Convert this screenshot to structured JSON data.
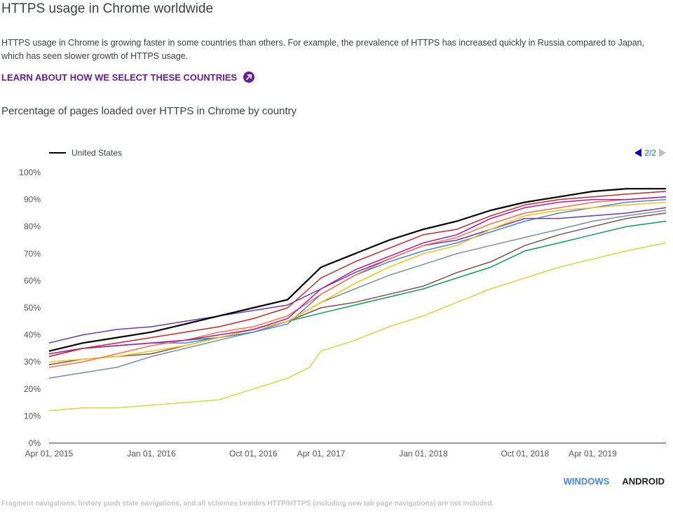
{
  "header": {
    "title": "HTTPS usage in Chrome worldwide",
    "description": "HTTPS usage in Chrome is growing faster in some countries than others. For example, the prevalence of HTTPS has increased quickly in Russia compared to Japan, which has seen slower growth of HTTPS usage.",
    "link_label": "LEARN ABOUT HOW WE SELECT THESE COUNTRIES",
    "link_icon": "arrow-outward-circle-icon"
  },
  "chart_title": "Percentage of pages loaded over HTTPS in Chrome by country",
  "legend": {
    "label": "United States",
    "color": "#000000"
  },
  "pager": {
    "label": "2/2",
    "prev_icon": "triangle-left-icon",
    "next_icon": "triangle-right-icon"
  },
  "tabs": {
    "windows": "WINDOWS",
    "android": "ANDROID",
    "active": "android"
  },
  "footnote": "Fragment navigations, history push state navigations, and all schemes besides HTTP/HTTPS (including new tab page navigations) are not included.",
  "chart_data": {
    "type": "line",
    "title": "Percentage of pages loaded over HTTPS in Chrome by country",
    "xlabel": "",
    "ylabel": "",
    "x_range": [
      "2015-04-01",
      "2019-10-15"
    ],
    "ylim": [
      0,
      100
    ],
    "y_ticks": [
      "0%",
      "10%",
      "20%",
      "30%",
      "40%",
      "50%",
      "60%",
      "70%",
      "80%",
      "90%",
      "100%"
    ],
    "x_ticks": [
      {
        "date": "2015-04-01",
        "label": "Apr 01, 2015"
      },
      {
        "date": "2016-01-01",
        "label": "Jan 01, 2016"
      },
      {
        "date": "2016-10-01",
        "label": "Oct 01, 2016"
      },
      {
        "date": "2017-04-01",
        "label": "Apr 01, 2017"
      },
      {
        "date": "2018-01-01",
        "label": "Jan 01, 2018"
      },
      {
        "date": "2018-10-01",
        "label": "Oct 01, 2018"
      },
      {
        "date": "2019-04-01",
        "label": "Apr 01, 2019"
      }
    ],
    "grid": false,
    "legend_position": "top-left",
    "series": [
      {
        "color": "#cddc39",
        "x": [
          "2015-04-01",
          "2015-07-01",
          "2015-10-01",
          "2016-01-01",
          "2016-04-01",
          "2016-07-01",
          "2016-10-01",
          "2017-01-01",
          "2017-03-01",
          "2017-04-01",
          "2017-07-01",
          "2017-10-01",
          "2018-01-01",
          "2018-04-01",
          "2018-07-01",
          "2018-10-01",
          "2019-01-01",
          "2019-04-01",
          "2019-07-01",
          "2019-10-15"
        ],
        "values": [
          12,
          13,
          13,
          14,
          15,
          16,
          20,
          24,
          28,
          34,
          38,
          43,
          47,
          52,
          57,
          61,
          65,
          68,
          71,
          74
        ]
      },
      {
        "color": "#0f9d58",
        "x": [
          "2015-04-01",
          "2015-07-01",
          "2015-10-01",
          "2016-01-01",
          "2016-04-01",
          "2016-07-01",
          "2016-10-01",
          "2017-01-01",
          "2017-04-01",
          "2017-07-01",
          "2017-10-01",
          "2018-01-01",
          "2018-04-01",
          "2018-07-01",
          "2018-10-01",
          "2019-01-01",
          "2019-04-01",
          "2019-07-01",
          "2019-10-15"
        ],
        "values": [
          32,
          35,
          36,
          37,
          38,
          39,
          41,
          45,
          48,
          51,
          54,
          57,
          61,
          65,
          71,
          74,
          77,
          80,
          82
        ]
      },
      {
        "color": "#795548",
        "x": [
          "2015-04-01",
          "2015-07-01",
          "2015-10-01",
          "2016-01-01",
          "2016-04-01",
          "2016-07-01",
          "2016-10-01",
          "2017-01-01",
          "2017-04-01",
          "2017-07-01",
          "2017-10-01",
          "2018-01-01",
          "2018-04-01",
          "2018-07-01",
          "2018-10-01",
          "2019-01-01",
          "2019-04-01",
          "2019-07-01",
          "2019-10-15"
        ],
        "values": [
          29,
          31,
          32,
          33,
          36,
          39,
          42,
          45,
          50,
          52,
          55,
          58,
          63,
          67,
          73,
          77,
          80,
          83,
          85
        ]
      },
      {
        "color": "#78909c",
        "x": [
          "2015-04-01",
          "2015-07-01",
          "2015-10-01",
          "2016-01-01",
          "2016-04-01",
          "2016-07-01",
          "2016-10-01",
          "2017-01-01",
          "2017-04-01",
          "2017-07-01",
          "2017-10-01",
          "2018-01-01",
          "2018-04-01",
          "2018-07-01",
          "2018-10-01",
          "2019-01-01",
          "2019-04-01",
          "2019-07-01",
          "2019-10-15"
        ],
        "values": [
          24,
          26,
          28,
          32,
          35,
          38,
          41,
          45,
          52,
          57,
          62,
          66,
          70,
          73,
          76,
          79,
          82,
          84,
          86
        ]
      },
      {
        "color": "#4285f4",
        "x": [
          "2015-04-01",
          "2015-07-01",
          "2015-10-01",
          "2016-01-01",
          "2016-04-01",
          "2016-07-01",
          "2016-10-01",
          "2017-01-01",
          "2017-04-01",
          "2017-07-01",
          "2017-10-01",
          "2018-01-01",
          "2018-04-01",
          "2018-07-01",
          "2018-10-01",
          "2019-01-01",
          "2019-04-01",
          "2019-07-01",
          "2019-10-15"
        ],
        "values": [
          33,
          35,
          36,
          37,
          37,
          39,
          41,
          44,
          55,
          62,
          67,
          71,
          74,
          78,
          82,
          85,
          87,
          89,
          90
        ]
      },
      {
        "color": "#673ab7",
        "x": [
          "2015-04-01",
          "2015-07-01",
          "2015-10-01",
          "2016-01-01",
          "2016-04-01",
          "2016-07-01",
          "2016-10-01",
          "2017-01-01",
          "2017-04-01",
          "2017-07-01",
          "2017-10-01",
          "2018-01-01",
          "2018-04-01",
          "2018-07-01",
          "2018-10-01",
          "2019-01-01",
          "2019-04-01",
          "2019-07-01",
          "2019-10-15"
        ],
        "values": [
          37,
          40,
          42,
          43,
          45,
          47,
          49,
          51,
          57,
          63,
          68,
          73,
          75,
          79,
          83,
          83,
          84,
          85,
          87
        ]
      },
      {
        "color": "#ffc107",
        "x": [
          "2015-04-01",
          "2015-07-01",
          "2015-10-01",
          "2016-01-01",
          "2016-04-01",
          "2016-07-01",
          "2016-10-01",
          "2017-01-01",
          "2017-04-01",
          "2017-07-01",
          "2017-10-01",
          "2018-01-01",
          "2018-04-01",
          "2018-07-01",
          "2018-10-01",
          "2019-01-01",
          "2019-04-01",
          "2019-07-01",
          "2019-10-15"
        ],
        "values": [
          30,
          31,
          32,
          34,
          36,
          39,
          42,
          45,
          52,
          59,
          65,
          70,
          73,
          79,
          84,
          86,
          87,
          88,
          89
        ]
      },
      {
        "color": "#ff7043",
        "x": [
          "2015-04-01",
          "2015-07-01",
          "2015-10-01",
          "2016-01-01",
          "2016-04-01",
          "2016-07-01",
          "2016-10-01",
          "2017-01-01",
          "2017-04-01",
          "2017-07-01",
          "2017-10-01",
          "2018-01-01",
          "2018-04-01",
          "2018-07-01",
          "2018-10-01",
          "2019-01-01",
          "2019-04-01",
          "2019-07-01",
          "2019-10-15"
        ],
        "values": [
          28,
          30,
          33,
          36,
          38,
          41,
          43,
          47,
          55,
          62,
          68,
          73,
          76,
          81,
          85,
          87,
          89,
          90,
          91
        ]
      },
      {
        "color": "#b5179e",
        "x": [
          "2015-04-01",
          "2015-07-01",
          "2015-10-01",
          "2016-01-01",
          "2016-04-01",
          "2016-07-01",
          "2016-10-01",
          "2017-01-01",
          "2017-04-01",
          "2017-07-01",
          "2017-10-01",
          "2018-01-01",
          "2018-04-01",
          "2018-07-01",
          "2018-10-01",
          "2019-01-01",
          "2019-04-01",
          "2019-07-01",
          "2019-10-15"
        ],
        "values": [
          33,
          35,
          36,
          37,
          38,
          40,
          42,
          46,
          57,
          64,
          69,
          74,
          77,
          83,
          87,
          89,
          90,
          90,
          91
        ]
      },
      {
        "color": "#c62828",
        "x": [
          "2015-04-01",
          "2015-07-01",
          "2015-10-01",
          "2016-01-01",
          "2016-04-01",
          "2016-07-01",
          "2016-10-01",
          "2017-01-01",
          "2017-04-01",
          "2017-07-01",
          "2017-10-01",
          "2018-01-01",
          "2018-04-01",
          "2018-07-01",
          "2018-10-01",
          "2019-01-01",
          "2019-04-01",
          "2019-07-01",
          "2019-10-15"
        ],
        "values": [
          32,
          35,
          37,
          39,
          41,
          43,
          46,
          50,
          61,
          67,
          72,
          77,
          79,
          84,
          88,
          90,
          91,
          92,
          93
        ]
      },
      {
        "color": "#000000",
        "name": "United States",
        "x": [
          "2015-04-01",
          "2015-07-01",
          "2015-10-01",
          "2016-01-01",
          "2016-04-01",
          "2016-07-01",
          "2016-10-01",
          "2017-01-01",
          "2017-04-01",
          "2017-07-01",
          "2017-10-01",
          "2018-01-01",
          "2018-04-01",
          "2018-07-01",
          "2018-10-01",
          "2019-01-01",
          "2019-04-01",
          "2019-07-01",
          "2019-10-15"
        ],
        "values": [
          34,
          37,
          39,
          41,
          44,
          47,
          50,
          53,
          65,
          70,
          75,
          79,
          82,
          86,
          89,
          91,
          93,
          94,
          94
        ]
      }
    ]
  }
}
